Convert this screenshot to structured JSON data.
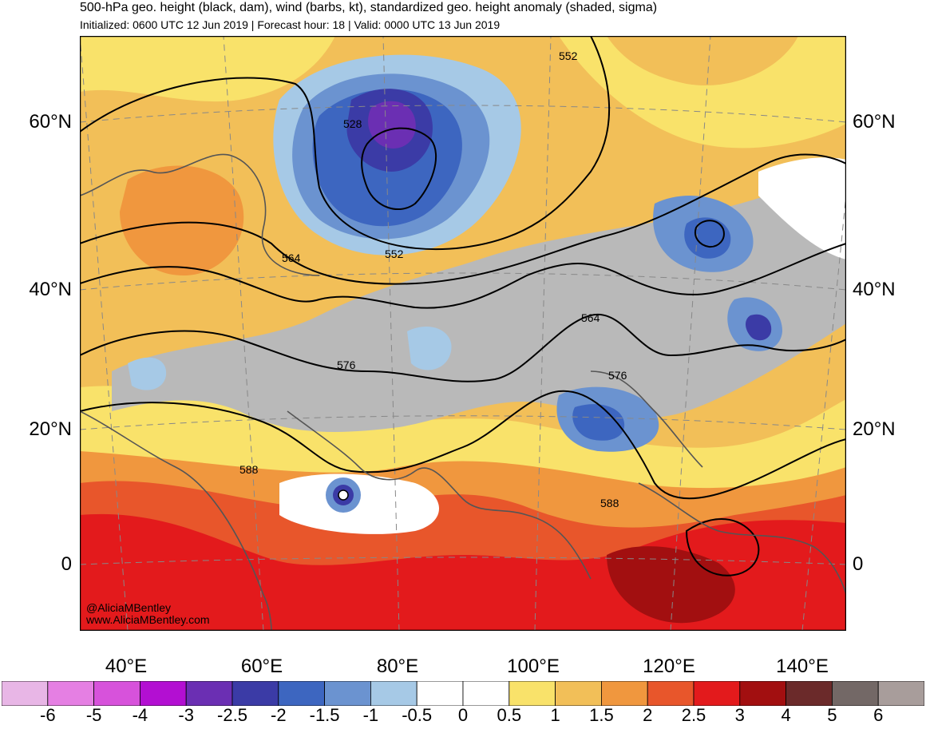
{
  "header": {
    "title": "500-hPa geo. height (black, dam), wind (barbs, kt), standardized geo. height anomaly (shaded, sigma)",
    "subtitle": "Initialized: 0600 UTC 12 Jun 2019 | Forecast hour: 18 | Valid: 0000 UTC 13 Jun 2019"
  },
  "map": {
    "lat_labels": [
      "60°N",
      "40°N",
      "20°N",
      "0"
    ],
    "lon_labels": [
      "40°E",
      "60°E",
      "80°E",
      "100°E",
      "120°E",
      "140°E"
    ],
    "contour_labels": [
      "552",
      "528",
      "552",
      "564",
      "564",
      "576",
      "576",
      "588",
      "588"
    ],
    "credit_handle": "@AliciaMBentley",
    "credit_site": "www.AliciaMBentley.com"
  },
  "colorbar": {
    "labels": [
      "-6",
      "-5",
      "-4",
      "-3",
      "-2.5",
      "-2",
      "-1.5",
      "-1",
      "-0.5",
      "0",
      "0.5",
      "1",
      "1.5",
      "2",
      "2.5",
      "3",
      "4",
      "5",
      "6"
    ],
    "colors": [
      "#e8b6e6",
      "#e57fe3",
      "#d752db",
      "#b30fd2",
      "#6b2fb3",
      "#3b3ba6",
      "#3d66c0",
      "#6b93d0",
      "#a6c9e6",
      "#ffffff",
      "#ffffff",
      "#f9e26a",
      "#f2bf58",
      "#f0973e",
      "#e8562b",
      "#e31a1c",
      "#a20f10",
      "#6b2a2a",
      "#736866",
      "#a89d9b"
    ]
  }
}
